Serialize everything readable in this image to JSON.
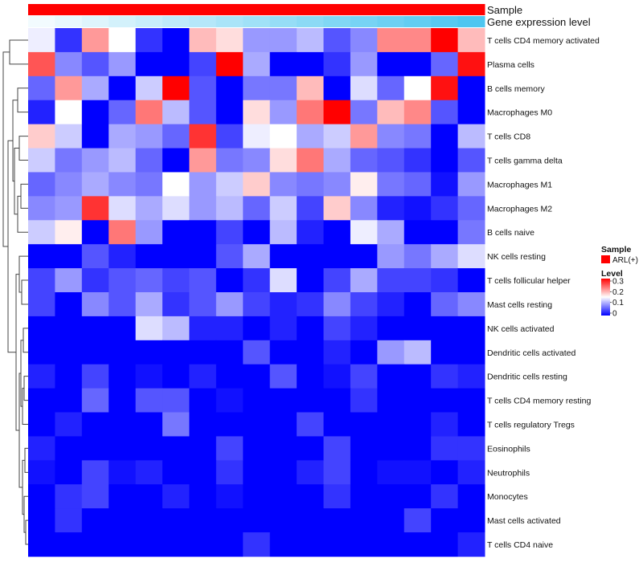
{
  "chart_data": {
    "type": "heatmap",
    "title": "",
    "annotation_tracks": [
      {
        "name": "Sample",
        "color": "#ff0000"
      },
      {
        "name": "Gene expression level",
        "gradient": [
          "#f2fbfe",
          "#4ec6f0"
        ]
      }
    ],
    "rows": [
      "T cells CD4 memory activated",
      "Plasma cells",
      "B cells memory",
      "Macrophages M0",
      "T cells CD8",
      "T cells gamma delta",
      "Macrophages M1",
      "Macrophages M2",
      "B cells naive",
      "NK cells resting",
      "T cells follicular helper",
      "Mast cells resting",
      "NK cells activated",
      "Dendritic cells activated",
      "Dendritic cells resting",
      "T cells CD4 memory resting",
      "T cells regulatory  Tregs",
      "Eosinophils",
      "Neutrophils",
      "Monocytes",
      "Mast cells activated",
      "T cells CD4 naive"
    ],
    "values": [
      [
        0.14,
        0.03,
        0.21,
        0.15,
        0.03,
        0.0,
        0.19,
        0.17,
        0.09,
        0.09,
        0.11,
        0.05,
        0.08,
        0.22,
        0.22,
        0.3,
        0.19
      ],
      [
        0.25,
        0.08,
        0.05,
        0.09,
        0.0,
        0.0,
        0.04,
        0.3,
        0.1,
        0.0,
        0.0,
        0.03,
        0.09,
        0.0,
        0.0,
        0.06,
        0.29
      ],
      [
        0.06,
        0.21,
        0.1,
        0.0,
        0.12,
        0.3,
        0.05,
        0.0,
        0.07,
        0.07,
        0.19,
        0.0,
        0.13,
        0.06,
        0.15,
        0.29,
        0.0
      ],
      [
        0.02,
        0.15,
        0.0,
        0.06,
        0.23,
        0.11,
        0.05,
        0.0,
        0.17,
        0.09,
        0.23,
        0.3,
        0.07,
        0.19,
        0.22,
        0.05,
        0.0
      ],
      [
        0.18,
        0.12,
        0.0,
        0.1,
        0.09,
        0.06,
        0.27,
        0.04,
        0.14,
        0.15,
        0.1,
        0.12,
        0.21,
        0.08,
        0.07,
        0.0,
        0.11
      ],
      [
        0.12,
        0.07,
        0.09,
        0.11,
        0.06,
        0.0,
        0.21,
        0.07,
        0.08,
        0.17,
        0.23,
        0.1,
        0.06,
        0.05,
        0.03,
        0.0,
        0.05
      ],
      [
        0.06,
        0.08,
        0.1,
        0.08,
        0.07,
        0.15,
        0.09,
        0.12,
        0.18,
        0.08,
        0.07,
        0.08,
        0.16,
        0.07,
        0.06,
        0.01,
        0.09
      ],
      [
        0.08,
        0.09,
        0.27,
        0.13,
        0.1,
        0.13,
        0.09,
        0.11,
        0.06,
        0.12,
        0.04,
        0.18,
        0.08,
        0.02,
        0.01,
        0.03,
        0.06
      ],
      [
        0.12,
        0.16,
        0.0,
        0.23,
        0.09,
        0.0,
        0.0,
        0.04,
        0.0,
        0.11,
        0.02,
        0.0,
        0.14,
        0.1,
        0.0,
        0.0,
        0.07
      ],
      [
        0.0,
        0.0,
        0.05,
        0.02,
        0.0,
        0.0,
        0.0,
        0.05,
        0.1,
        0.0,
        0.0,
        0.0,
        0.0,
        0.09,
        0.07,
        0.1,
        0.13
      ],
      [
        0.04,
        0.09,
        0.03,
        0.05,
        0.06,
        0.04,
        0.05,
        0.0,
        0.03,
        0.13,
        0.0,
        0.04,
        0.1,
        0.04,
        0.04,
        0.03,
        0.0
      ],
      [
        0.04,
        0.0,
        0.08,
        0.05,
        0.1,
        0.03,
        0.05,
        0.09,
        0.04,
        0.02,
        0.03,
        0.08,
        0.04,
        0.02,
        0.0,
        0.06,
        0.08
      ],
      [
        0.0,
        0.0,
        0.0,
        0.0,
        0.13,
        0.11,
        0.02,
        0.02,
        0.0,
        0.02,
        0.0,
        0.04,
        0.02,
        0.0,
        0.0,
        0.0,
        0.0
      ],
      [
        0.0,
        0.0,
        0.0,
        0.0,
        0.0,
        0.0,
        0.0,
        0.0,
        0.05,
        0.0,
        0.0,
        0.02,
        0.0,
        0.09,
        0.11,
        0.0,
        0.0
      ],
      [
        0.02,
        0.0,
        0.04,
        0.0,
        0.01,
        0.0,
        0.02,
        0.0,
        0.0,
        0.05,
        0.0,
        0.01,
        0.04,
        0.0,
        0.0,
        0.03,
        0.02
      ],
      [
        0.0,
        0.0,
        0.06,
        0.0,
        0.05,
        0.05,
        0.0,
        0.01,
        0.0,
        0.0,
        0.0,
        0.0,
        0.03,
        0.0,
        0.0,
        0.0,
        0.0
      ],
      [
        0.0,
        0.02,
        0.0,
        0.0,
        0.0,
        0.07,
        0.0,
        0.0,
        0.0,
        0.0,
        0.04,
        0.0,
        0.0,
        0.0,
        0.0,
        0.02,
        0.0
      ],
      [
        0.02,
        0.0,
        0.0,
        0.0,
        0.0,
        0.0,
        0.0,
        0.04,
        0.0,
        0.0,
        0.0,
        0.04,
        0.0,
        0.0,
        0.0,
        0.03,
        0.03
      ],
      [
        0.01,
        0.0,
        0.04,
        0.01,
        0.02,
        0.0,
        0.0,
        0.03,
        0.0,
        0.0,
        0.02,
        0.04,
        0.0,
        0.01,
        0.01,
        0.0,
        0.02
      ],
      [
        0.0,
        0.03,
        0.04,
        0.0,
        0.0,
        0.02,
        0.0,
        0.01,
        0.0,
        0.0,
        0.0,
        0.03,
        0.0,
        0.0,
        0.0,
        0.03,
        0.0
      ],
      [
        0.0,
        0.03,
        0.0,
        0.0,
        0.0,
        0.0,
        0.0,
        0.0,
        0.0,
        0.0,
        0.0,
        0.0,
        0.0,
        0.0,
        0.04,
        0.0,
        0.0
      ],
      [
        0.0,
        0.0,
        0.0,
        0.0,
        0.0,
        0.0,
        0.0,
        0.0,
        0.03,
        0.0,
        0.0,
        0.0,
        0.0,
        0.0,
        0.0,
        0.0,
        0.02
      ]
    ],
    "color_scale": {
      "low": "#0000ff",
      "mid": "#ffffff",
      "high": "#ff0000",
      "range": [
        0,
        0.3
      ]
    },
    "legend": {
      "sample_title": "Sample",
      "sample_entry": "ARL(+)",
      "sample_color": "#ff0000",
      "level_title": "Level",
      "ticks": [
        "0.3",
        "0.2",
        "0.1",
        "0"
      ]
    },
    "row_dendrogram": true,
    "legend_position": "right"
  }
}
